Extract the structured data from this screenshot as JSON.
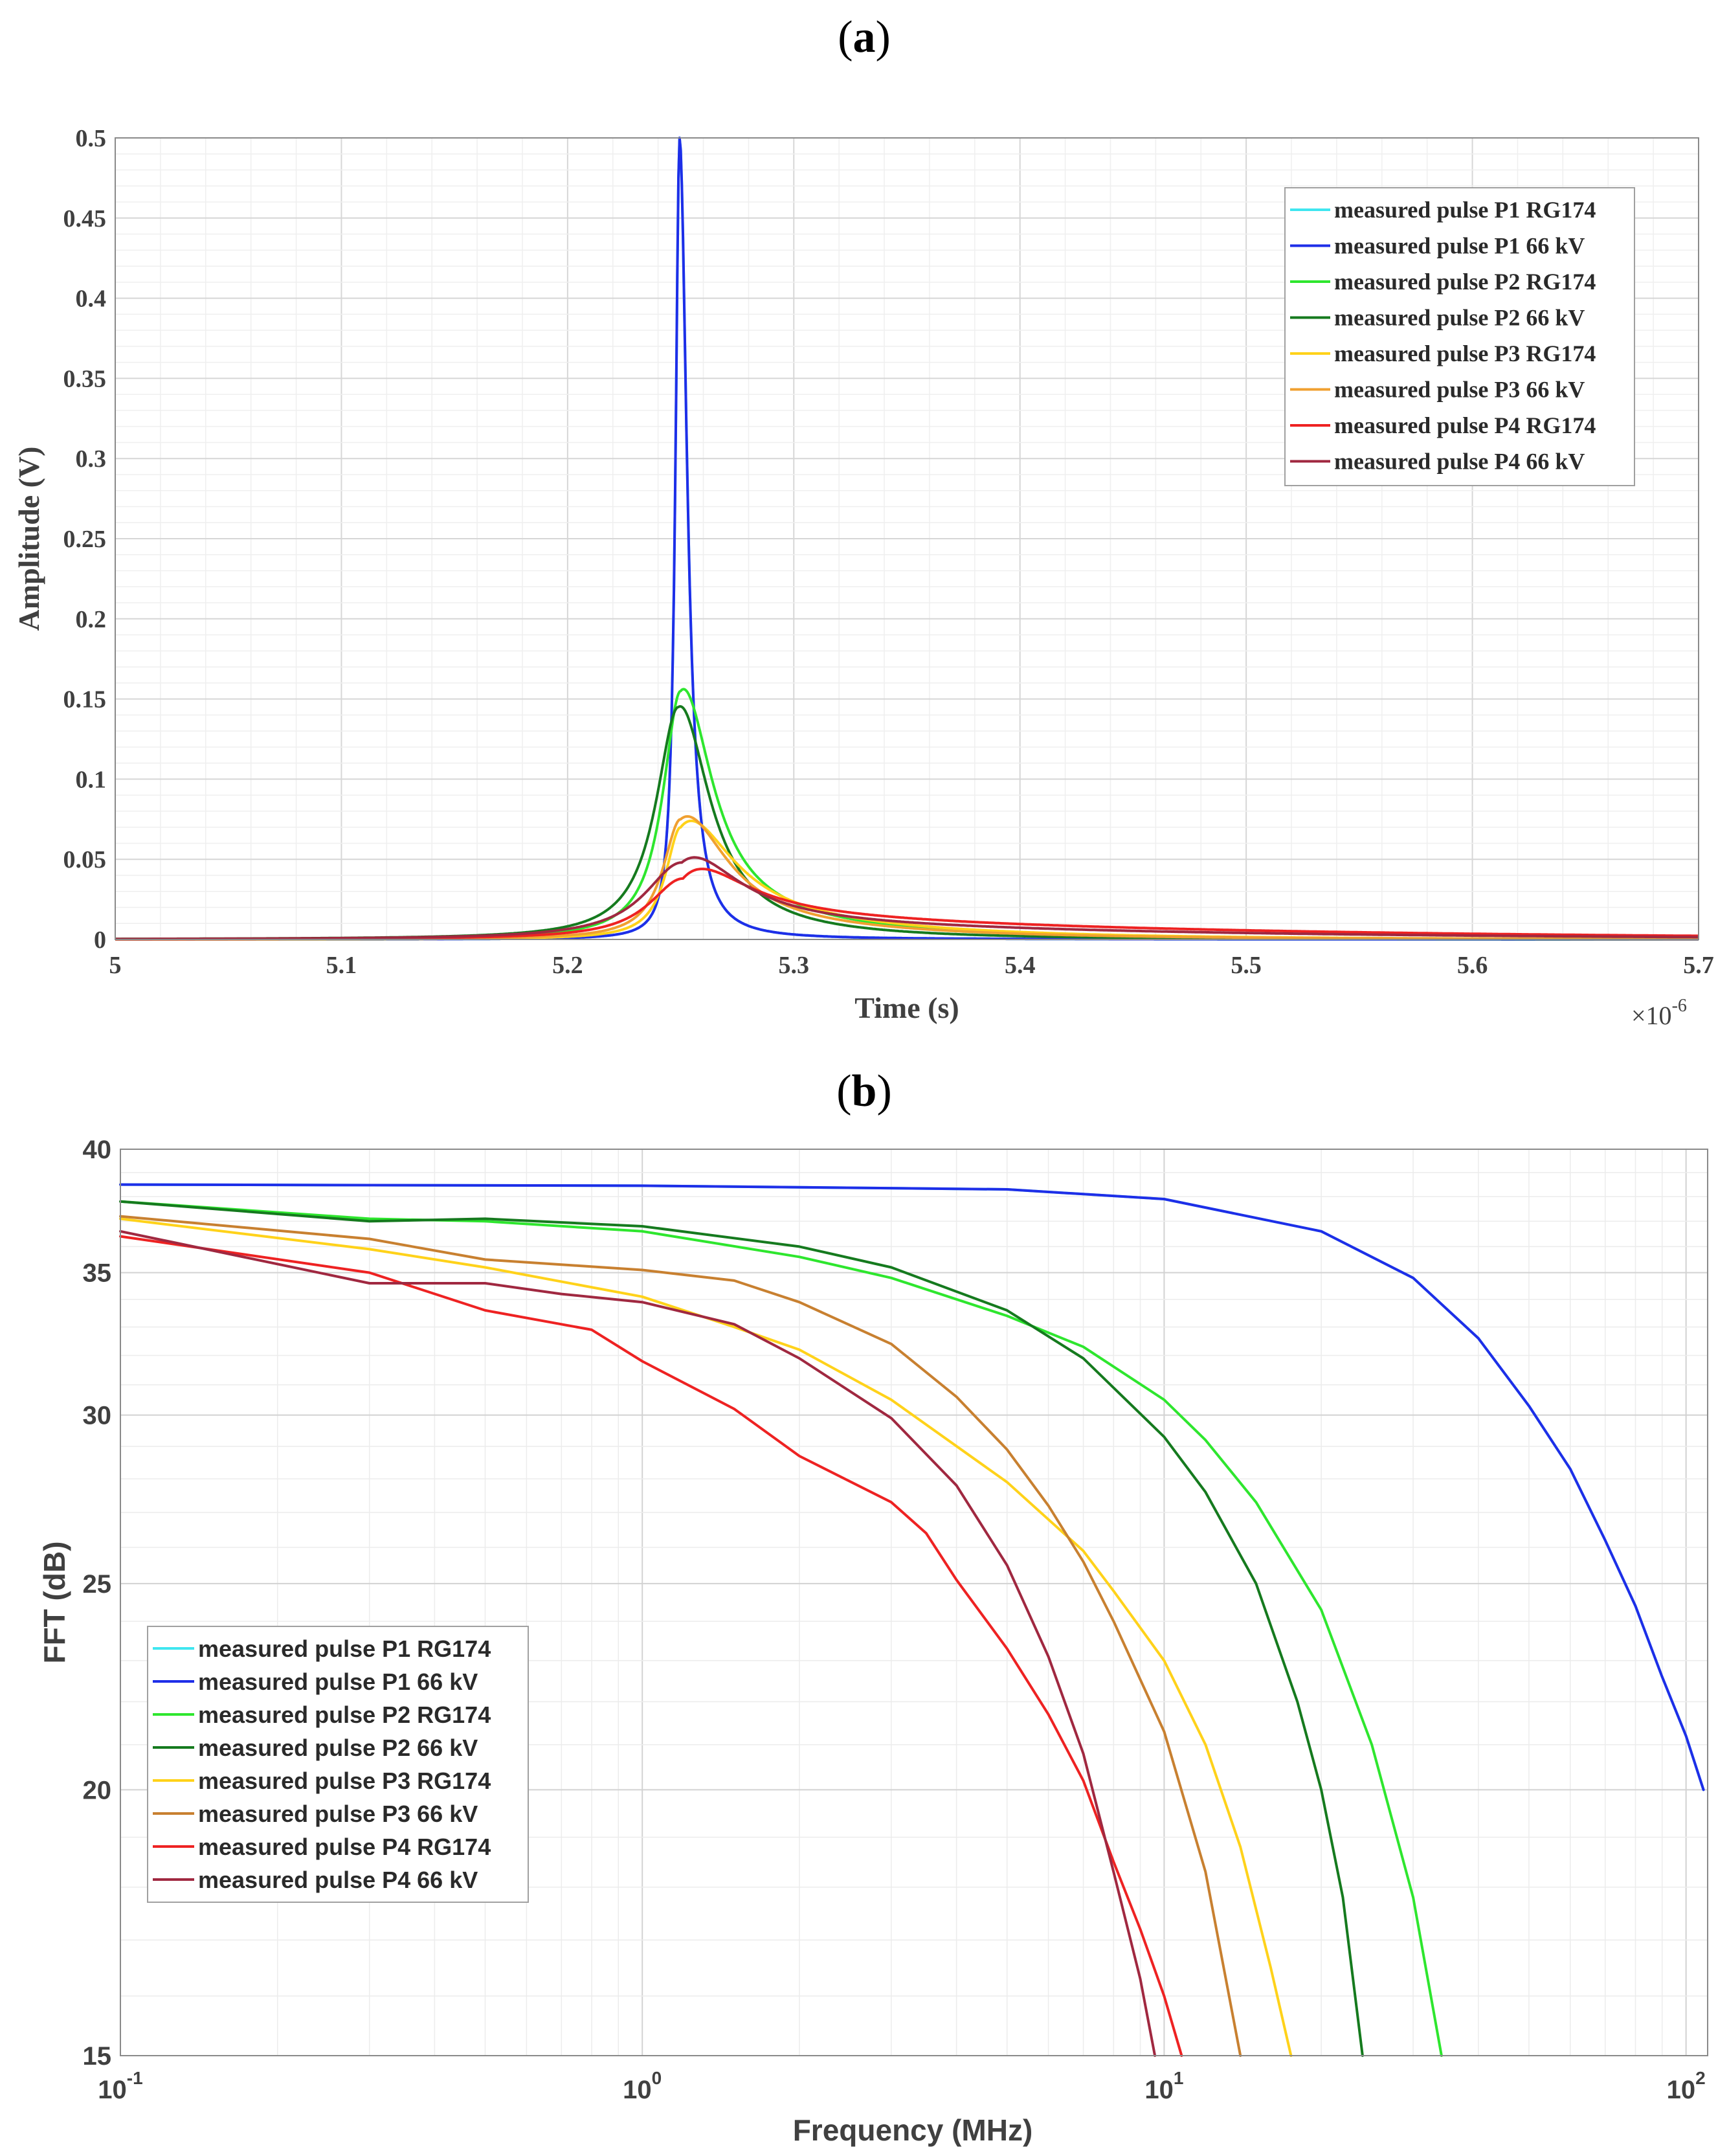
{
  "chart_data": [
    {
      "type": "line",
      "panel_label_open": "(",
      "panel_label_letter": "a",
      "panel_label_close": ")",
      "xlabel": "Time (s)",
      "ylabel": "Amplitude (V)",
      "xlim": [
        5.0,
        5.7
      ],
      "ylim": [
        0,
        0.5
      ],
      "x_multiplier_base": "×10",
      "x_multiplier_exp": "-6",
      "x_ticks": [
        "5",
        "5.1",
        "5.2",
        "5.3",
        "5.4",
        "5.5",
        "5.6",
        "5.7"
      ],
      "y_ticks": [
        "0",
        "0.05",
        "0.1",
        "0.15",
        "0.2",
        "0.25",
        "0.3",
        "0.35",
        "0.4",
        "0.45",
        "0.5"
      ],
      "grid": true,
      "legend_position": "top-right",
      "series": [
        {
          "name": "measured pulse P1 RG174",
          "color": "#3FE6F0",
          "peak": 0.5,
          "t0": 5.2495,
          "rise": 0.0022,
          "fall": 0.004,
          "tail_amp": 0.0,
          "tail_tau": 0.1
        },
        {
          "name": "measured pulse P1 66 kV",
          "color": "#1E2EE8",
          "peak": 0.5,
          "t0": 5.2495,
          "rise": 0.0022,
          "fall": 0.004,
          "tail_amp": 0.0,
          "tail_tau": 0.1
        },
        {
          "name": "measured pulse P2 RG174",
          "color": "#2EE62E",
          "peak": 0.155,
          "t0": 5.25,
          "rise": 0.0095,
          "fall": 0.016,
          "tail_amp": 0.018,
          "tail_tau": 0.07
        },
        {
          "name": "measured pulse P2 66 kV",
          "color": "#157A1E",
          "peak": 0.145,
          "t0": 5.249,
          "rise": 0.012,
          "fall": 0.016,
          "tail_amp": 0.01,
          "tail_tau": 0.05
        },
        {
          "name": "measured pulse P3 RG174",
          "color": "#FFD21A",
          "peak": 0.07,
          "t0": 5.25,
          "rise": 0.008,
          "fall": 0.025,
          "tail_amp": 0.018,
          "tail_tau": 0.08
        },
        {
          "name": "measured pulse P3 66 kV",
          "color": "#F0A030",
          "peak": 0.075,
          "t0": 5.25,
          "rise": 0.0095,
          "fall": 0.023,
          "tail_amp": 0.012,
          "tail_tau": 0.08
        },
        {
          "name": "measured pulse P4 RG174",
          "color": "#EE2222",
          "peak": 0.038,
          "t0": 5.251,
          "rise": 0.018,
          "fall": 0.03,
          "tail_amp": 0.016,
          "tail_tau": 0.22
        },
        {
          "name": "measured pulse P4 66 kV",
          "color": "#A02840",
          "peak": 0.048,
          "t0": 5.2505,
          "rise": 0.02,
          "fall": 0.028,
          "tail_amp": 0.012,
          "tail_tau": 0.2
        }
      ]
    },
    {
      "type": "line",
      "panel_label_open": "(",
      "panel_label_letter": "b",
      "panel_label_close": ")",
      "xlabel": "Frequency (MHz)",
      "ylabel": "FFT (dB)",
      "x_scale": "log",
      "y_scale": "log",
      "xlim": [
        0.1,
        110
      ],
      "ylim": [
        15,
        40
      ],
      "x_ticks": [
        {
          "base": "10",
          "exp": "-1",
          "value": 0.1
        },
        {
          "base": "10",
          "exp": "0",
          "value": 1
        },
        {
          "base": "10",
          "exp": "1",
          "value": 10
        },
        {
          "base": "10",
          "exp": "2",
          "value": 100
        }
      ],
      "y_ticks": [
        "15",
        "20",
        "25",
        "30",
        "35",
        "40"
      ],
      "grid": true,
      "legend_position": "bottom-left",
      "series": [
        {
          "name": "measured pulse P1 RG174",
          "color": "#3FE6F0",
          "points": [
            [
              0.1,
              38.5
            ],
            [
              1,
              38.45
            ],
            [
              5,
              38.3
            ],
            [
              10,
              37.9
            ],
            [
              20,
              36.6
            ],
            [
              30,
              34.8
            ],
            [
              40,
              32.6
            ],
            [
              50,
              30.3
            ],
            [
              60,
              28.3
            ],
            [
              70,
              26.2
            ],
            [
              80,
              24.4
            ],
            [
              90,
              22.6
            ],
            [
              100,
              21.2
            ],
            [
              108,
              20.0
            ]
          ]
        },
        {
          "name": "measured pulse P1 66 kV",
          "color": "#1E2EE8",
          "points": [
            [
              0.1,
              38.5
            ],
            [
              1,
              38.45
            ],
            [
              5,
              38.3
            ],
            [
              10,
              37.9
            ],
            [
              20,
              36.6
            ],
            [
              30,
              34.8
            ],
            [
              40,
              32.6
            ],
            [
              50,
              30.3
            ],
            [
              60,
              28.3
            ],
            [
              70,
              26.2
            ],
            [
              80,
              24.4
            ],
            [
              90,
              22.6
            ],
            [
              100,
              21.2
            ],
            [
              108,
              20.0
            ]
          ]
        },
        {
          "name": "measured pulse P2 RG174",
          "color": "#2EE62E",
          "points": [
            [
              0.1,
              37.8
            ],
            [
              0.3,
              37.1
            ],
            [
              0.5,
              37.0
            ],
            [
              1,
              36.6
            ],
            [
              2,
              35.6
            ],
            [
              3,
              34.8
            ],
            [
              5,
              33.4
            ],
            [
              7,
              32.3
            ],
            [
              10,
              30.5
            ],
            [
              12,
              29.2
            ],
            [
              15,
              27.3
            ],
            [
              20,
              24.3
            ],
            [
              25,
              21.0
            ],
            [
              30,
              17.8
            ],
            [
              34,
              15.0
            ]
          ]
        },
        {
          "name": "measured pulse P2 66 kV",
          "color": "#157A1E",
          "points": [
            [
              0.1,
              37.8
            ],
            [
              0.3,
              37.0
            ],
            [
              0.5,
              37.1
            ],
            [
              1,
              36.8
            ],
            [
              2,
              36.0
            ],
            [
              3,
              35.2
            ],
            [
              5,
              33.6
            ],
            [
              7,
              31.9
            ],
            [
              10,
              29.3
            ],
            [
              12,
              27.6
            ],
            [
              15,
              25.0
            ],
            [
              18,
              22.0
            ],
            [
              20,
              20.0
            ],
            [
              22,
              17.8
            ],
            [
              24,
              15.0
            ]
          ]
        },
        {
          "name": "measured pulse P3 RG174",
          "color": "#FFD21A",
          "points": [
            [
              0.1,
              37.1
            ],
            [
              0.3,
              35.9
            ],
            [
              0.5,
              35.2
            ],
            [
              1,
              34.1
            ],
            [
              1.5,
              33.0
            ],
            [
              2,
              32.2
            ],
            [
              3,
              30.5
            ],
            [
              5,
              27.9
            ],
            [
              7,
              25.9
            ],
            [
              8,
              24.8
            ],
            [
              10,
              23.0
            ],
            [
              12,
              21.0
            ],
            [
              14,
              18.8
            ],
            [
              16,
              16.5
            ],
            [
              17.5,
              15.0
            ]
          ]
        },
        {
          "name": "measured pulse P3 66 kV",
          "color": "#C88030",
          "points": [
            [
              0.1,
              37.2
            ],
            [
              0.3,
              36.3
            ],
            [
              0.5,
              35.5
            ],
            [
              1,
              35.1
            ],
            [
              1.5,
              34.7
            ],
            [
              2,
              33.9
            ],
            [
              3,
              32.4
            ],
            [
              4,
              30.6
            ],
            [
              5,
              28.9
            ],
            [
              6,
              27.2
            ],
            [
              7,
              25.6
            ],
            [
              8,
              24.0
            ],
            [
              10,
              21.3
            ],
            [
              12,
              18.3
            ],
            [
              14,
              15.0
            ]
          ]
        },
        {
          "name": "measured pulse P4 RG174",
          "color": "#EE2222",
          "points": [
            [
              0.1,
              36.4
            ],
            [
              0.3,
              35.0
            ],
            [
              0.5,
              33.6
            ],
            [
              0.8,
              32.9
            ],
            [
              1,
              31.8
            ],
            [
              1.5,
              30.2
            ],
            [
              2,
              28.7
            ],
            [
              3,
              27.3
            ],
            [
              3.5,
              26.4
            ],
            [
              4,
              25.1
            ],
            [
              5,
              23.3
            ],
            [
              6,
              21.7
            ],
            [
              7,
              20.2
            ],
            [
              8,
              18.5
            ],
            [
              9,
              17.2
            ],
            [
              10,
              16.0
            ],
            [
              10.8,
              15.0
            ]
          ]
        },
        {
          "name": "measured pulse P4 66 kV",
          "color": "#A02840",
          "points": [
            [
              0.1,
              36.6
            ],
            [
              0.3,
              34.6
            ],
            [
              0.5,
              34.6
            ],
            [
              0.7,
              34.2
            ],
            [
              1,
              33.9
            ],
            [
              1.5,
              33.1
            ],
            [
              2,
              31.9
            ],
            [
              3,
              29.9
            ],
            [
              4,
              27.8
            ],
            [
              5,
              25.5
            ],
            [
              6,
              23.1
            ],
            [
              7,
              20.8
            ],
            [
              8,
              18.3
            ],
            [
              9,
              16.3
            ],
            [
              9.6,
              15.0
            ]
          ]
        }
      ]
    }
  ]
}
